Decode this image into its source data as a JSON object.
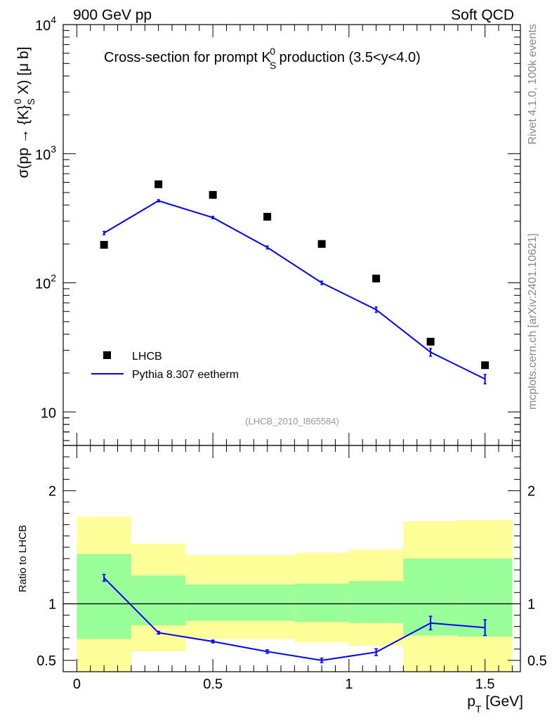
{
  "header": {
    "left": "900 GeV pp",
    "right": "Soft QCD"
  },
  "side_labels": {
    "rivet": "Rivet 4.1.0,  100k events",
    "mcplots": "mcplots.cern.ch [arXiv:2401.10621]"
  },
  "chart_data": [
    {
      "type": "scatter",
      "panel": "main",
      "title_main": "Cross-section for prompt K",
      "title_sub": "S",
      "title_sup": "0",
      "title_rest": " production (3.5<y<4.0)",
      "ylabel": "σ(pp → {K}_S^0 X) [μ b]",
      "ylabel_parts": {
        "a": "σ(pp → {K}",
        "sub": "S",
        "sup": "0",
        "b": " X) [μ b]"
      },
      "ylim": [
        5.5,
        10000
      ],
      "yscale": "log",
      "xlim": [
        -0.05,
        1.63
      ],
      "ytick_labels": [
        {
          "value": 10,
          "label": "10"
        },
        {
          "value": 100,
          "label": "10",
          "exp": "2"
        },
        {
          "value": 1000,
          "label": "10",
          "exp": "3"
        },
        {
          "value": 10000,
          "label": "10",
          "exp": "4"
        }
      ],
      "series": [
        {
          "name": "LHCB",
          "style": "markers",
          "color": "#000000",
          "x": [
            0.1,
            0.3,
            0.5,
            0.7,
            0.9,
            1.1,
            1.3,
            1.5
          ],
          "values": [
            197,
            580,
            480,
            325,
            200,
            108,
            35,
            23
          ]
        },
        {
          "name": "Pythia 8.307 eetherm",
          "style": "line",
          "color": "#0000ff",
          "x": [
            0.1,
            0.3,
            0.5,
            0.7,
            0.9,
            1.1,
            1.3,
            1.5
          ],
          "values": [
            243,
            432,
            320,
            188,
            100,
            62,
            29,
            18
          ],
          "err_lo": [
            236,
            423,
            314,
            183,
            97,
            59,
            27,
            16.5
          ],
          "err_hi": [
            250,
            441,
            327,
            193,
            103,
            65,
            31,
            19.5
          ]
        }
      ],
      "watermark": "(LHCB_2010_I865584)",
      "legend": [
        {
          "label": "LHCB",
          "style": "marker"
        },
        {
          "label": "Pythia 8.307 eetherm",
          "style": "line"
        }
      ]
    },
    {
      "type": "line",
      "panel": "ratio",
      "ylabel": "Ratio to LHCB",
      "xlabel": "p",
      "xlabel_sub": "T",
      "xlabel_rest": " [GeV]",
      "ylim": [
        0.4,
        2.4
      ],
      "xlim": [
        -0.05,
        1.63
      ],
      "xticks": [
        0,
        0.5,
        1,
        1.5
      ],
      "xtick_labels": [
        "0",
        "0.5",
        "1",
        "1.5"
      ],
      "yticks_labeled": [
        0.5,
        1,
        2
      ],
      "ytick_labels": [
        "0.5",
        "1",
        "2"
      ],
      "bands": [
        {
          "x0": 0.0,
          "x1": 0.2,
          "yellow": [
            0.4,
            1.77
          ],
          "green": [
            0.69,
            1.44
          ]
        },
        {
          "x0": 0.2,
          "x1": 0.4,
          "yellow": [
            0.58,
            1.53
          ],
          "green": [
            0.81,
            1.25
          ]
        },
        {
          "x0": 0.4,
          "x1": 0.8,
          "yellow": [
            0.69,
            1.43
          ],
          "green": [
            0.85,
            1.17
          ]
        },
        {
          "x0": 0.8,
          "x1": 1.0,
          "yellow": [
            0.66,
            1.45
          ],
          "green": [
            0.84,
            1.18
          ]
        },
        {
          "x0": 1.0,
          "x1": 1.2,
          "yellow": [
            0.63,
            1.48
          ],
          "green": [
            0.83,
            1.2
          ]
        },
        {
          "x0": 1.2,
          "x1": 1.4,
          "yellow": [
            0.4,
            1.73
          ],
          "green": [
            0.72,
            1.4
          ]
        },
        {
          "x0": 1.4,
          "x1": 1.6,
          "yellow": [
            0.4,
            1.74
          ],
          "green": [
            0.71,
            1.4
          ]
        }
      ],
      "series": [
        {
          "name": "Pythia 8.307 eetherm / LHCB",
          "color": "#0000ff",
          "x": [
            0.1,
            0.3,
            0.5,
            0.7,
            0.9,
            1.1,
            1.3,
            1.5
          ],
          "values": [
            1.23,
            0.745,
            0.667,
            0.578,
            0.5,
            0.573,
            0.83,
            0.79
          ],
          "err": [
            0.03,
            0.012,
            0.012,
            0.015,
            0.02,
            0.03,
            0.06,
            0.07
          ]
        }
      ],
      "reference_line": 1
    }
  ],
  "colors": {
    "data": "#000000",
    "mc": "#0000ff",
    "band_yellow": "#ffff99",
    "band_green": "#99ff99",
    "side_text": "#888888",
    "watermark": "#999999"
  }
}
